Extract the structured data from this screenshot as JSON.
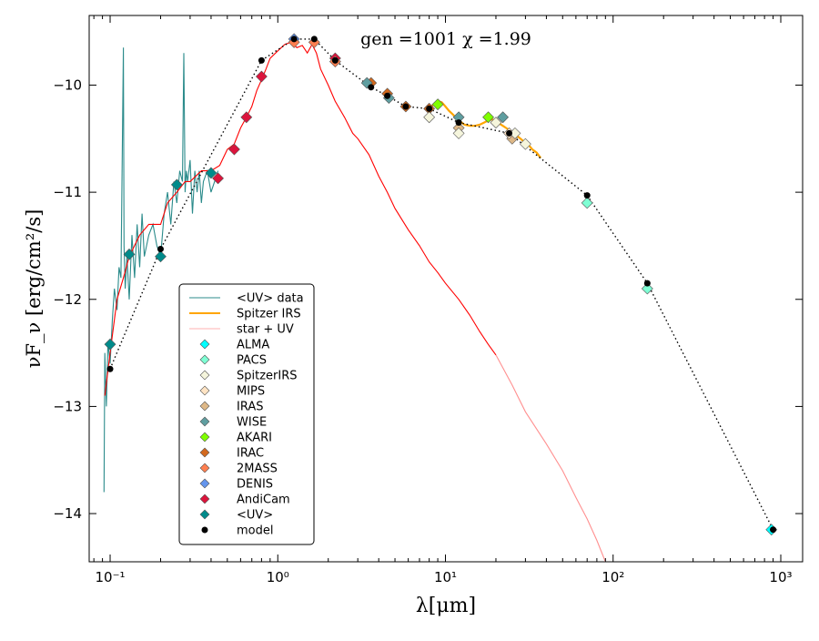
{
  "chart_data": {
    "type": "scatter",
    "title": "gen =1001  χ =1.99",
    "xlabel": "λ[μm]",
    "ylabel": "νF_ν [erg/cm²/s]",
    "xscale": "log",
    "xlim": [
      0.075,
      1350
    ],
    "ylim": [
      -14.45,
      -9.35
    ],
    "xticks": [
      0.1,
      1,
      10,
      100,
      1000
    ],
    "xticklabels": [
      "10⁻¹",
      "10⁰",
      "10¹",
      "10²",
      "10³"
    ],
    "yticks": [
      -10,
      -11,
      -12,
      -13,
      -14
    ],
    "yticklabels": [
      "−10",
      "−11",
      "−12",
      "−13",
      "−14"
    ],
    "grid": false,
    "legend_position": "lower-left",
    "legend": [
      {
        "label": "<UV> data",
        "kind": "line",
        "color": "#2b8b8b"
      },
      {
        "label": "Spitzer IRS",
        "kind": "line",
        "color": "#ffa500"
      },
      {
        "label": "star + UV",
        "kind": "line",
        "color": "#ffb0b0"
      },
      {
        "label": "ALMA",
        "kind": "diamond",
        "color": "#00ffff"
      },
      {
        "label": "PACS",
        "kind": "diamond",
        "color": "#7fffd4"
      },
      {
        "label": "SpitzerIRS",
        "kind": "diamond",
        "color": "#f5f5dc"
      },
      {
        "label": "MIPS",
        "kind": "diamond",
        "color": "#ffe4c4"
      },
      {
        "label": "IRAS",
        "kind": "diamond",
        "color": "#deb887"
      },
      {
        "label": "WISE",
        "kind": "diamond",
        "color": "#5f9ea0"
      },
      {
        "label": "AKARI",
        "kind": "diamond",
        "color": "#7fff00"
      },
      {
        "label": "IRAC",
        "kind": "diamond",
        "color": "#d2691e"
      },
      {
        "label": "2MASS",
        "kind": "diamond",
        "color": "#ff7f50"
      },
      {
        "label": "DENIS",
        "kind": "diamond",
        "color": "#6495ed"
      },
      {
        "label": "AndiCam",
        "kind": "diamond",
        "color": "#dc143c"
      },
      {
        "label": "<UV>",
        "kind": "diamond",
        "color": "#008b8b"
      },
      {
        "label": "model",
        "kind": "dot",
        "color": "#000000"
      }
    ],
    "series": [
      {
        "name": "<UV> data",
        "type": "line",
        "color": "#2b8b8b",
        "x": [
          0.092,
          0.093,
          0.095,
          0.097,
          0.1,
          0.103,
          0.106,
          0.11,
          0.113,
          0.116,
          0.12,
          0.121,
          0.123,
          0.126,
          0.13,
          0.135,
          0.14,
          0.145,
          0.15,
          0.155,
          0.16,
          0.17,
          0.18,
          0.19,
          0.2,
          0.21,
          0.22,
          0.23,
          0.24,
          0.25,
          0.26,
          0.27,
          0.275,
          0.28,
          0.285,
          0.29,
          0.3,
          0.31,
          0.32,
          0.33,
          0.34,
          0.35,
          0.36,
          0.38,
          0.4,
          0.42,
          0.44
        ],
        "y": [
          -13.8,
          -12.5,
          -13.0,
          -12.4,
          -12.6,
          -12.2,
          -11.9,
          -12.1,
          -11.7,
          -11.8,
          -9.65,
          -11.5,
          -11.9,
          -11.6,
          -12.0,
          -11.4,
          -11.8,
          -11.3,
          -11.7,
          -11.2,
          -11.6,
          -11.4,
          -11.3,
          -11.5,
          -11.6,
          -11.2,
          -11.0,
          -11.3,
          -10.9,
          -11.1,
          -10.8,
          -10.9,
          -9.7,
          -11.0,
          -10.8,
          -10.9,
          -10.7,
          -11.2,
          -10.8,
          -11.0,
          -10.8,
          -11.1,
          -10.9,
          -10.8,
          -11.0,
          -10.9,
          -10.8
        ]
      },
      {
        "name": "star + UV",
        "type": "line",
        "color": "#ff0000",
        "x": [
          0.093,
          0.1,
          0.11,
          0.12,
          0.13,
          0.15,
          0.17,
          0.2,
          0.22,
          0.25,
          0.28,
          0.3,
          0.35,
          0.4,
          0.45,
          0.5,
          0.55,
          0.6,
          0.65,
          0.7,
          0.75,
          0.8,
          0.85,
          0.9,
          1.0,
          1.1,
          1.2,
          1.3,
          1.4,
          1.5,
          1.6,
          1.7,
          1.8,
          2.0,
          2.2,
          2.5,
          2.8,
          3.0,
          3.5,
          4.0,
          4.5,
          5.0,
          6.0,
          7.0,
          8.0,
          9.0,
          10.0,
          12.0,
          14.0,
          16.0,
          18.0,
          20.0
        ],
        "y": [
          -12.9,
          -12.5,
          -12.0,
          -11.8,
          -11.6,
          -11.4,
          -11.3,
          -11.3,
          -11.1,
          -11.0,
          -10.9,
          -10.9,
          -10.8,
          -10.8,
          -10.75,
          -10.6,
          -10.55,
          -10.4,
          -10.3,
          -10.2,
          -10.05,
          -9.95,
          -9.85,
          -9.75,
          -9.68,
          -9.62,
          -9.6,
          -9.65,
          -9.63,
          -9.7,
          -9.62,
          -9.7,
          -9.85,
          -10.0,
          -10.15,
          -10.3,
          -10.45,
          -10.5,
          -10.65,
          -10.85,
          -11.0,
          -11.15,
          -11.35,
          -11.5,
          -11.65,
          -11.75,
          -11.85,
          -12.0,
          -12.15,
          -12.3,
          -12.42,
          -12.52
        ]
      },
      {
        "name": "star + UV",
        "type": "line",
        "color": "#ff9090",
        "x": [
          20.0,
          25.0,
          30.0,
          40.0,
          50.0,
          60.0,
          70.0,
          80.0,
          90.0
        ],
        "y": [
          -12.52,
          -12.8,
          -13.05,
          -13.35,
          -13.6,
          -13.85,
          -14.05,
          -14.25,
          -14.45
        ]
      },
      {
        "name": "Spitzer IRS",
        "type": "line",
        "color": "#ffa500",
        "x": [
          8.0,
          8.5,
          9.0,
          9.5,
          10.0,
          10.5,
          11.0,
          11.5,
          12.0,
          12.5,
          13.0,
          14.0,
          15.0,
          16.0,
          17.0,
          18.0,
          19.0,
          20.0,
          21.0,
          22.0,
          23.0,
          24.0,
          25.0,
          27.0,
          29.0,
          31.0,
          33.0,
          35.0,
          37.0
        ],
        "y": [
          -10.22,
          -10.18,
          -10.15,
          -10.16,
          -10.2,
          -10.24,
          -10.27,
          -10.3,
          -10.33,
          -10.35,
          -10.37,
          -10.38,
          -10.38,
          -10.37,
          -10.35,
          -10.33,
          -10.32,
          -10.34,
          -10.36,
          -10.38,
          -10.4,
          -10.42,
          -10.45,
          -10.48,
          -10.52,
          -10.55,
          -10.6,
          -10.63,
          -10.68
        ]
      },
      {
        "name": "model",
        "type": "dotted_line",
        "color": "#000000",
        "x": [
          0.1,
          0.2,
          0.8,
          1.25,
          1.65,
          2.2,
          3.6,
          4.5,
          5.8,
          8.0,
          12.0,
          24.0,
          70.0,
          160.0,
          900.0
        ],
        "y": [
          -12.65,
          -11.53,
          -9.77,
          -9.57,
          -9.57,
          -9.77,
          -10.02,
          -10.1,
          -10.2,
          -10.22,
          -10.35,
          -10.45,
          -11.03,
          -11.85,
          -14.15
        ]
      }
    ],
    "photometry": [
      {
        "name": "<UV>",
        "color": "#008b8b",
        "x": [
          0.1,
          0.13,
          0.2,
          0.25,
          0.4
        ],
        "y": [
          -12.42,
          -11.58,
          -11.6,
          -10.93,
          -10.82
        ]
      },
      {
        "name": "AndiCam",
        "color": "#dc143c",
        "x": [
          0.44,
          0.55,
          0.65,
          0.8,
          2.2
        ],
        "y": [
          -10.87,
          -10.6,
          -10.3,
          -9.92,
          -9.75
        ]
      },
      {
        "name": "DENIS",
        "color": "#6495ed",
        "x": [
          1.25
        ],
        "y": [
          -9.57
        ]
      },
      {
        "name": "2MASS",
        "color": "#ff7f50",
        "x": [
          1.25,
          1.65,
          2.2
        ],
        "y": [
          -9.6,
          -9.6,
          -9.78
        ]
      },
      {
        "name": "IRAC",
        "color": "#d2691e",
        "x": [
          3.6,
          4.5,
          5.8,
          8.0
        ],
        "y": [
          -9.98,
          -10.08,
          -10.2,
          -10.22
        ]
      },
      {
        "name": "WISE",
        "color": "#5f9ea0",
        "x": [
          3.4,
          4.6,
          12.0,
          22.0
        ],
        "y": [
          -9.98,
          -10.12,
          -10.3,
          -10.3
        ]
      },
      {
        "name": "AKARI",
        "color": "#7fff00",
        "x": [
          9.0,
          18.0
        ],
        "y": [
          -10.18,
          -10.3
        ]
      },
      {
        "name": "IRAS",
        "color": "#deb887",
        "x": [
          12.0,
          25.0
        ],
        "y": [
          -10.4,
          -10.5
        ]
      },
      {
        "name": "MIPS",
        "color": "#ffe4c4",
        "x": [
          24.0
        ],
        "y": [
          -10.45
        ]
      },
      {
        "name": "SpitzerIRS",
        "color": "#f5f5dc",
        "x": [
          8.0,
          12.0,
          20.0,
          26.0,
          30.0
        ],
        "y": [
          -10.3,
          -10.45,
          -10.35,
          -10.45,
          -10.55
        ]
      },
      {
        "name": "PACS",
        "color": "#7fffd4",
        "x": [
          70.0,
          160.0
        ],
        "y": [
          -11.1,
          -11.9
        ]
      },
      {
        "name": "ALMA",
        "color": "#00ffff",
        "x": [
          880.0
        ],
        "y": [
          -14.15
        ]
      }
    ]
  }
}
